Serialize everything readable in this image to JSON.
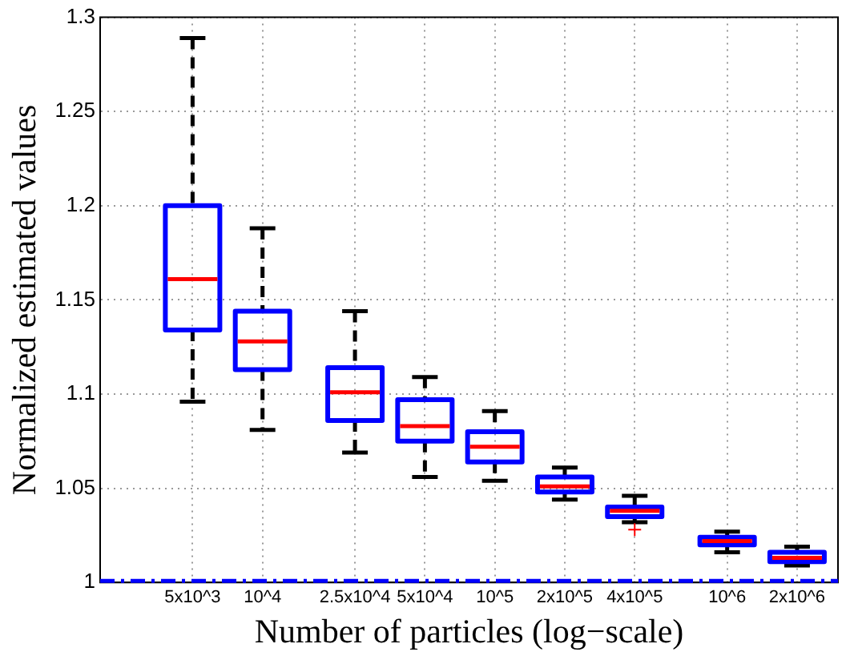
{
  "chart_data": {
    "type": "box",
    "xlabel": "Number of particles (log−scale)",
    "ylabel": "Normalized estimated values",
    "log": "x",
    "grid": true,
    "x": [
      5000,
      10000,
      25000,
      50000,
      100000,
      200000,
      400000,
      1000000,
      2000000
    ],
    "xlim": [
      2000,
      3000000
    ],
    "xticks": [
      {
        "value": 5000,
        "label": "5x10^3"
      },
      {
        "value": 10000,
        "label": "10^4"
      },
      {
        "value": 25000,
        "label": "2.5x10^4"
      },
      {
        "value": 50000,
        "label": "5x10^4"
      },
      {
        "value": 100000,
        "label": "10^5"
      },
      {
        "value": 200000,
        "label": "2x10^5"
      },
      {
        "value": 400000,
        "label": "4x10^5"
      },
      {
        "value": 1000000,
        "label": "10^6"
      },
      {
        "value": 2000000,
        "label": "2x10^6"
      }
    ],
    "ylim": [
      1,
      1.3
    ],
    "yticks": [
      1,
      1.05,
      1.1,
      1.15,
      1.2,
      1.25,
      1.3
    ],
    "series": [
      {
        "color": "#0000ff",
        "boxes": [
          {
            "low": 1.096,
            "q1": 1.134,
            "median": 1.161,
            "q3": 1.2,
            "high": 1.289
          },
          {
            "low": 1.081,
            "q1": 1.113,
            "median": 1.128,
            "q3": 1.144,
            "high": 1.188
          },
          {
            "low": 1.069,
            "q1": 1.086,
            "median": 1.101,
            "q3": 1.114,
            "high": 1.144
          },
          {
            "low": 1.056,
            "q1": 1.075,
            "median": 1.083,
            "q3": 1.097,
            "high": 1.109
          },
          {
            "low": 1.054,
            "q1": 1.064,
            "median": 1.072,
            "q3": 1.08,
            "high": 1.091
          },
          {
            "low": 1.044,
            "q1": 1.048,
            "median": 1.051,
            "q3": 1.056,
            "high": 1.061
          },
          {
            "low": 1.032,
            "q1": 1.035,
            "median": 1.038,
            "q3": 1.04,
            "high": 1.046,
            "outliers": [
              1.028
            ]
          },
          {
            "low": 1.016,
            "q1": 1.02,
            "median": 1.022,
            "q3": 1.024,
            "high": 1.027
          },
          {
            "low": 1.009,
            "q1": 1.011,
            "median": 1.013,
            "q3": 1.016,
            "high": 1.019
          }
        ]
      }
    ],
    "ref_lines": [
      {
        "axis": "y",
        "value": 1,
        "color": "#0000ff",
        "line_style": "dashed"
      }
    ]
  }
}
